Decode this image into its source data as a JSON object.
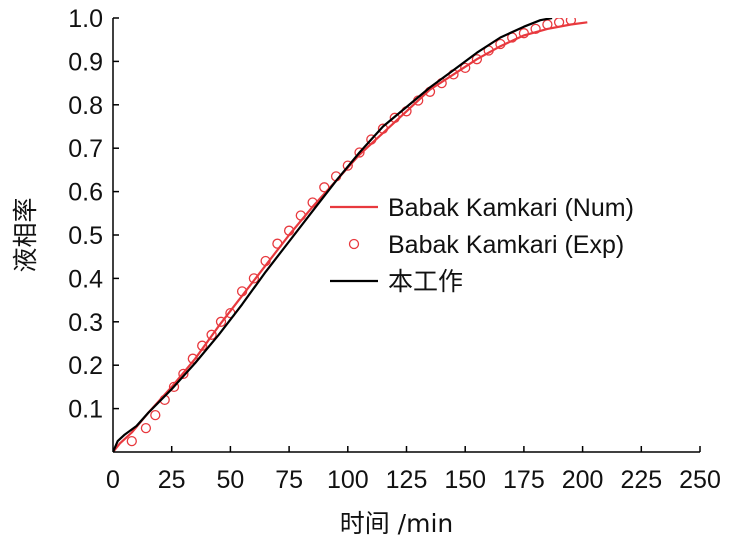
{
  "chart_data": {
    "type": "line",
    "xlabel": "时间 /min",
    "ylabel": "液相率",
    "xlim": [
      0,
      250
    ],
    "ylim": [
      0,
      1.0
    ],
    "x_ticks": [
      0,
      25,
      50,
      75,
      100,
      125,
      150,
      175,
      200,
      225,
      250
    ],
    "x_tick_labels": [
      "0",
      "25",
      "50",
      "75",
      "100",
      "125",
      "150",
      "175",
      "200",
      "225",
      "250"
    ],
    "y_ticks": [
      0.1,
      0.2,
      0.3,
      0.4,
      0.5,
      0.6,
      0.7,
      0.8,
      0.9,
      1.0
    ],
    "y_tick_labels": [
      "0.1",
      "0.2",
      "0.3",
      "0.4",
      "0.5",
      "0.6",
      "0.7",
      "0.8",
      "0.9",
      "1.0"
    ],
    "grid": false,
    "legend_position": "center-right",
    "series": [
      {
        "name": "Babak Kamkari (Num)",
        "style": "line",
        "color": "#e8393e",
        "x": [
          0,
          3,
          8,
          15,
          25,
          35,
          45,
          55,
          65,
          75,
          85,
          95,
          105,
          115,
          125,
          135,
          145,
          155,
          165,
          175,
          185,
          195,
          202
        ],
        "y": [
          0,
          0.02,
          0.045,
          0.09,
          0.15,
          0.215,
          0.29,
          0.36,
          0.43,
          0.5,
          0.565,
          0.625,
          0.685,
          0.735,
          0.785,
          0.835,
          0.87,
          0.905,
          0.935,
          0.96,
          0.975,
          0.985,
          0.99
        ]
      },
      {
        "name": "Babak Kamkari (Exp)",
        "style": "marker",
        "color": "#e8393e",
        "x": [
          8,
          14,
          18,
          22,
          26,
          30,
          34,
          38,
          42,
          46,
          50,
          55,
          60,
          65,
          70,
          75,
          80,
          85,
          90,
          95,
          100,
          105,
          110,
          115,
          120,
          125,
          130,
          135,
          140,
          145,
          150,
          155,
          160,
          165,
          170,
          175,
          180,
          185,
          190,
          195
        ],
        "y": [
          0.025,
          0.055,
          0.085,
          0.12,
          0.15,
          0.18,
          0.215,
          0.245,
          0.27,
          0.3,
          0.32,
          0.37,
          0.4,
          0.44,
          0.48,
          0.51,
          0.545,
          0.575,
          0.61,
          0.635,
          0.66,
          0.69,
          0.72,
          0.745,
          0.77,
          0.785,
          0.81,
          0.83,
          0.85,
          0.87,
          0.885,
          0.905,
          0.925,
          0.94,
          0.955,
          0.965,
          0.975,
          0.985,
          0.99,
          0.995
        ]
      },
      {
        "name": "本工作",
        "style": "line",
        "color": "#000000",
        "x": [
          0,
          2,
          5,
          10,
          15,
          25,
          35,
          45,
          55,
          65,
          75,
          85,
          95,
          105,
          115,
          125,
          135,
          145,
          155,
          165,
          175,
          182,
          187
        ],
        "y": [
          0,
          0.025,
          0.04,
          0.06,
          0.09,
          0.145,
          0.205,
          0.27,
          0.34,
          0.415,
          0.485,
          0.555,
          0.625,
          0.69,
          0.75,
          0.795,
          0.84,
          0.88,
          0.92,
          0.955,
          0.98,
          0.995,
          1.0
        ]
      }
    ]
  }
}
